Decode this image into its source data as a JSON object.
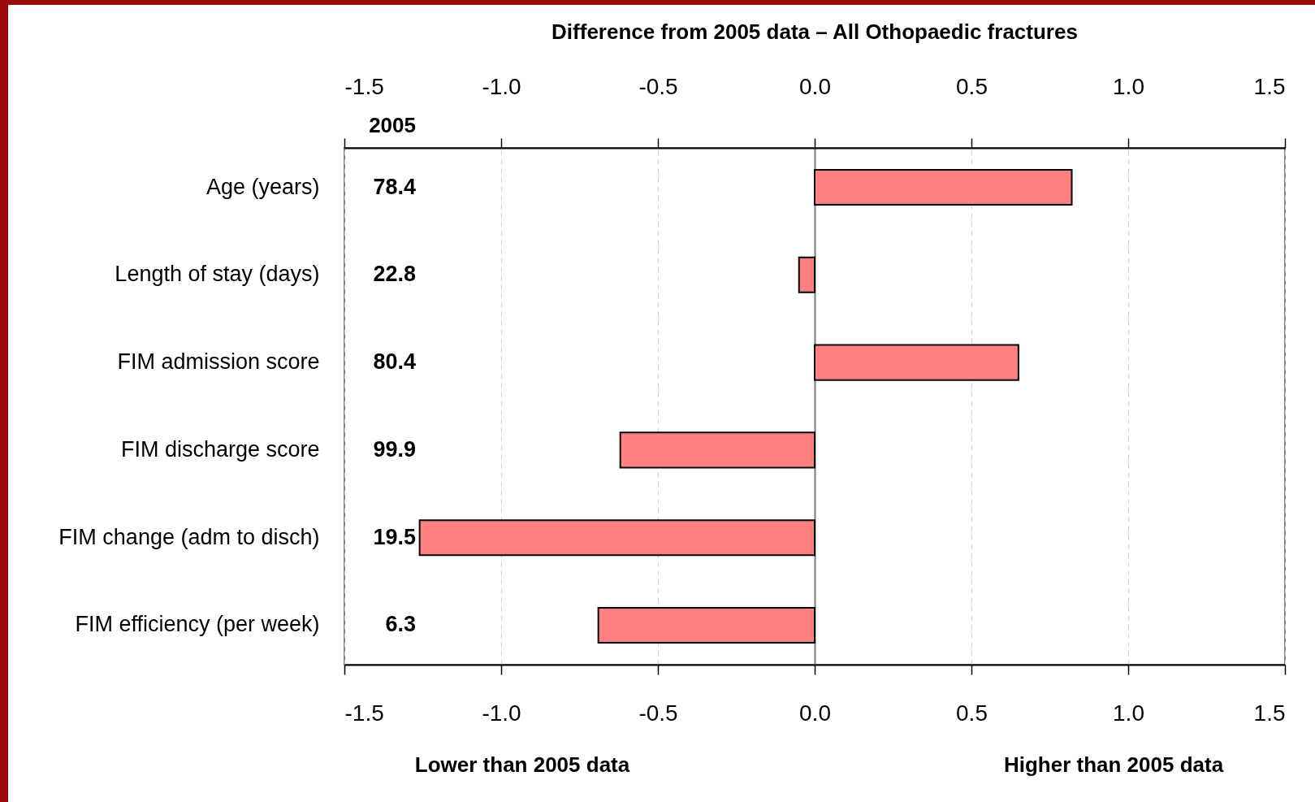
{
  "chart_data": {
    "type": "bar",
    "orientation": "horizontal",
    "title": "Difference from 2005 data – All Othopaedic fractures",
    "categories": [
      "Age (years)",
      "Length of stay (days)",
      "FIM admission score",
      "FIM discharge score",
      "FIM change (adm to disch)",
      "FIM efficiency (per week)"
    ],
    "values": [
      0.82,
      -0.05,
      0.65,
      -0.62,
      -1.26,
      -0.69
    ],
    "color": "#ff8080",
    "xlim": [
      -1.5,
      1.5
    ],
    "xticks": [
      -1.5,
      {
        "value": -1,
        "label": "-1.0"
      },
      -0.5,
      {
        "value": 0,
        "label": "0.0"
      },
      0.5,
      {
        "value": 1,
        "label": "1.0"
      },
      1.5
    ],
    "x2lim": [
      -1.5,
      1.5
    ],
    "x2ticks": [
      -1.5,
      {
        "value": -1,
        "label": "-1.0"
      },
      -0.5,
      {
        "value": 0,
        "label": "0.0"
      },
      0.5,
      {
        "value": 1,
        "label": "1.0"
      },
      1.5
    ],
    "grid": "x",
    "annotations": [
      "2005",
      "78.4",
      "22.8",
      "80.4",
      "99.9",
      "19.5",
      "6.3",
      "Lower than 2005 data",
      "Higher than 2005 data"
    ]
  }
}
